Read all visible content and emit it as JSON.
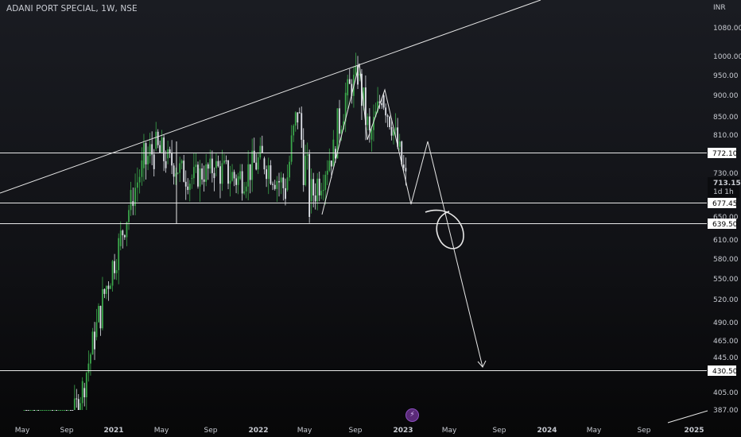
{
  "header": {
    "symbol_line": "ADANI PORT SPECIAL, 1W, NSE"
  },
  "price_axis": {
    "currency": "INR",
    "labels": [
      "1080.00",
      "1000.00",
      "950.00",
      "900.00",
      "850.00",
      "810.00",
      "730.00",
      "650.00",
      "610.00",
      "580.00",
      "550.00",
      "520.00",
      "490.00",
      "465.00",
      "445.00",
      "405.00",
      "387.00"
    ],
    "last_price": "713.15",
    "timeframe_badge": "1d 1h"
  },
  "time_axis": {
    "labels": [
      "May",
      "Sep",
      "2021",
      "May",
      "Sep",
      "2022",
      "May",
      "Sep",
      "2023",
      "May",
      "Sep",
      "2024",
      "May",
      "Sep",
      "2025"
    ]
  },
  "horizontal_levels": [
    "772.10",
    "677.45",
    "639.50",
    "430.50"
  ],
  "colors": {
    "bull": "#3aa54a",
    "bear": "#e0e3ea",
    "lines": "#e8e8e8",
    "background": "#131519"
  },
  "icons": {
    "flash_button": "lightning-icon"
  },
  "chart_data": {
    "type": "candlestick",
    "title": "ADANI PORT SPECIAL, 1W, NSE",
    "y_unit": "INR",
    "price_scale": "log",
    "ylim": [
      380,
      1100
    ],
    "x_range": [
      "2020-05",
      "2025-01"
    ],
    "horizontal_lines": [
      772.1,
      677.45,
      639.5,
      430.5
    ],
    "trendlines": [
      {
        "name": "upper-trendline",
        "points": [
          [
            "2020-05",
            730
          ],
          [
            "2024-01",
            1120
          ]
        ]
      }
    ],
    "price_path_drawing": [
      [
        "2022-05",
        650
      ],
      [
        "2022-09",
        990
      ],
      [
        "2022-10",
        780
      ],
      [
        "2022-12",
        910
      ],
      [
        "2023-01",
        680
      ],
      [
        "2023-02",
        790
      ],
      [
        "2023-07",
        430
      ]
    ],
    "candles_weekly": [
      [
        "2020-05",
        330,
        340,
        320,
        335
      ],
      [
        "2020-07",
        340,
        345,
        330,
        338
      ],
      [
        "2020-08",
        345,
        360,
        340,
        355
      ],
      [
        "2020-09",
        360,
        380,
        350,
        370
      ],
      [
        "2020-10",
        370,
        420,
        360,
        410
      ],
      [
        "2020-11",
        410,
        480,
        400,
        470
      ],
      [
        "2020-12",
        470,
        560,
        460,
        540
      ],
      [
        "2021-01",
        540,
        620,
        520,
        600
      ],
      [
        "2021-02",
        600,
        700,
        590,
        680
      ],
      [
        "2021-03",
        680,
        760,
        660,
        740
      ],
      [
        "2021-04",
        740,
        890,
        720,
        780
      ],
      [
        "2021-05",
        780,
        890,
        740,
        760
      ],
      [
        "2021-07",
        760,
        800,
        700,
        720
      ],
      [
        "2021-09",
        720,
        780,
        690,
        740
      ],
      [
        "2021-11",
        740,
        820,
        700,
        720
      ],
      [
        "2022-01",
        720,
        800,
        680,
        760
      ],
      [
        "2022-03",
        760,
        800,
        680,
        700
      ],
      [
        "2022-04",
        700,
        880,
        690,
        860
      ],
      [
        "2022-05",
        860,
        880,
        650,
        680
      ],
      [
        "2022-07",
        680,
        800,
        660,
        780
      ],
      [
        "2022-08",
        780,
        940,
        760,
        900
      ],
      [
        "2022-09",
        900,
        990,
        860,
        950
      ],
      [
        "2022-10",
        950,
        960,
        780,
        800
      ],
      [
        "2022-11",
        800,
        910,
        790,
        900
      ],
      [
        "2022-12",
        900,
        910,
        800,
        820
      ],
      [
        "2023-01",
        820,
        830,
        700,
        713
      ]
    ]
  }
}
